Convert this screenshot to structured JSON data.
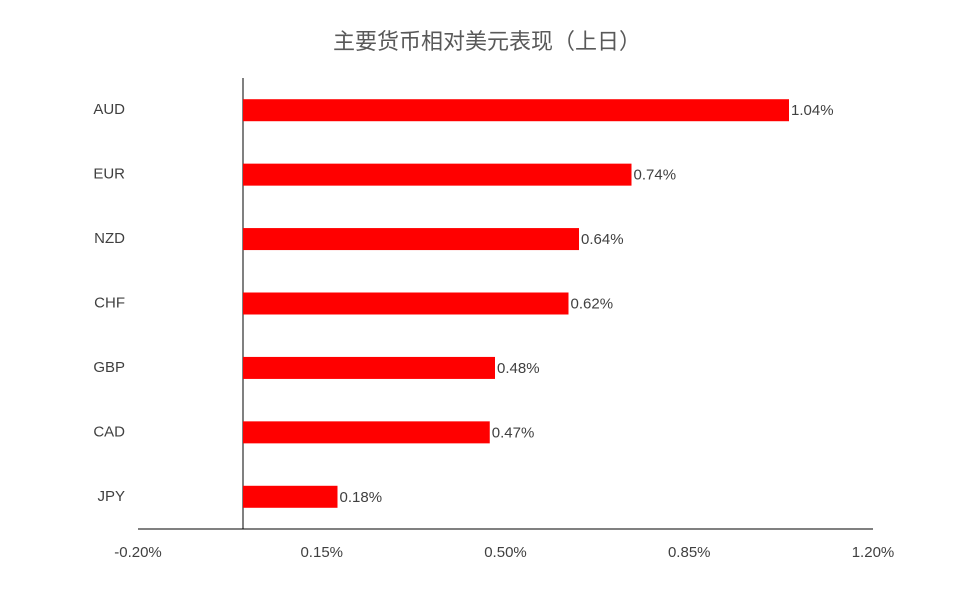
{
  "chart_data": {
    "type": "hbar",
    "title": "主要货币相对美元表现（上日）",
    "categories": [
      "AUD",
      "EUR",
      "NZD",
      "CHF",
      "GBP",
      "CAD",
      "JPY"
    ],
    "values": [
      1.04,
      0.74,
      0.64,
      0.62,
      0.48,
      0.47,
      0.18
    ],
    "value_labels": [
      "1.04%",
      "0.74%",
      "0.64%",
      "0.62%",
      "0.48%",
      "0.47%",
      "0.18%"
    ],
    "color": "#ff0000",
    "xlim": [
      -0.2,
      1.2
    ],
    "xticks": [
      {
        "value": -0.2,
        "label": "-0.20%"
      },
      {
        "value": 0.15,
        "label": "0.15%"
      },
      {
        "value": 0.5,
        "label": "0.50%"
      },
      {
        "value": 0.85,
        "label": "0.85%"
      },
      {
        "value": 1.2,
        "label": "1.20%"
      }
    ],
    "grid": false
  }
}
